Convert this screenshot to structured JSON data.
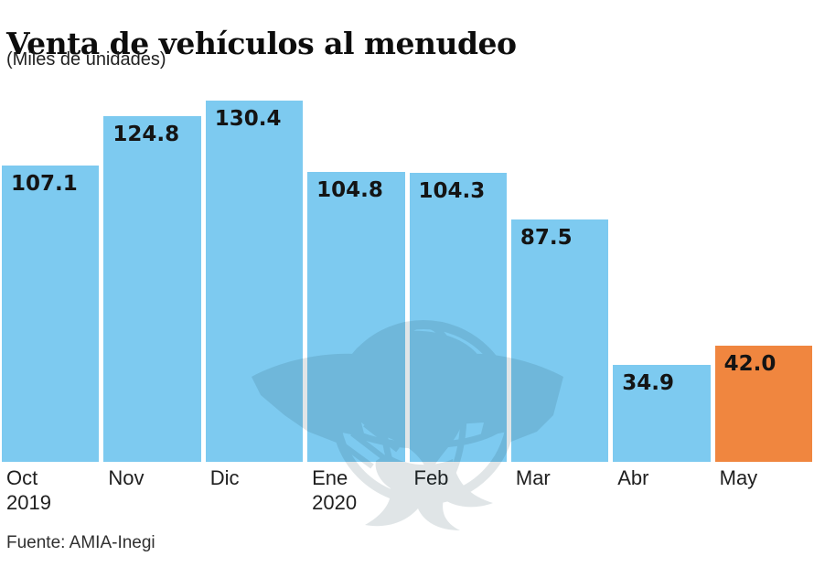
{
  "header": {
    "title": "Venta de vehículos al menudeo",
    "subtitle": "(Miles de unidades)"
  },
  "footer": {
    "source": "Fuente: AMIA-Inegi"
  },
  "watermark": {
    "icon": "eagle-globe-watermark"
  },
  "chart_data": {
    "type": "bar",
    "title": "Venta de vehículos al menudeo",
    "subtitle": "(Miles de unidades)",
    "source": "Fuente: AMIA-Inegi",
    "categories": [
      {
        "month": "Oct",
        "year": "2019"
      },
      {
        "month": "Nov",
        "year": ""
      },
      {
        "month": "Dic",
        "year": ""
      },
      {
        "month": "Ene",
        "year": "2020"
      },
      {
        "month": "Feb",
        "year": ""
      },
      {
        "month": "Mar",
        "year": ""
      },
      {
        "month": "Abr",
        "year": ""
      },
      {
        "month": "May",
        "year": ""
      }
    ],
    "values": [
      107.1,
      124.8,
      130.4,
      104.8,
      104.3,
      87.5,
      34.9,
      42.0
    ],
    "value_labels": [
      "107.1",
      "124.8",
      "130.4",
      "104.8",
      "104.3",
      "87.5",
      "34.9",
      "42.0"
    ],
    "highlighted_index": 7,
    "bar_color": "#7DCAF0",
    "highlight_color": "#F0863F",
    "value_label_position": "inside-top-left",
    "ylim": [
      0,
      130.4
    ],
    "grid": false,
    "legend": false,
    "xlabel": "",
    "ylabel": ""
  }
}
